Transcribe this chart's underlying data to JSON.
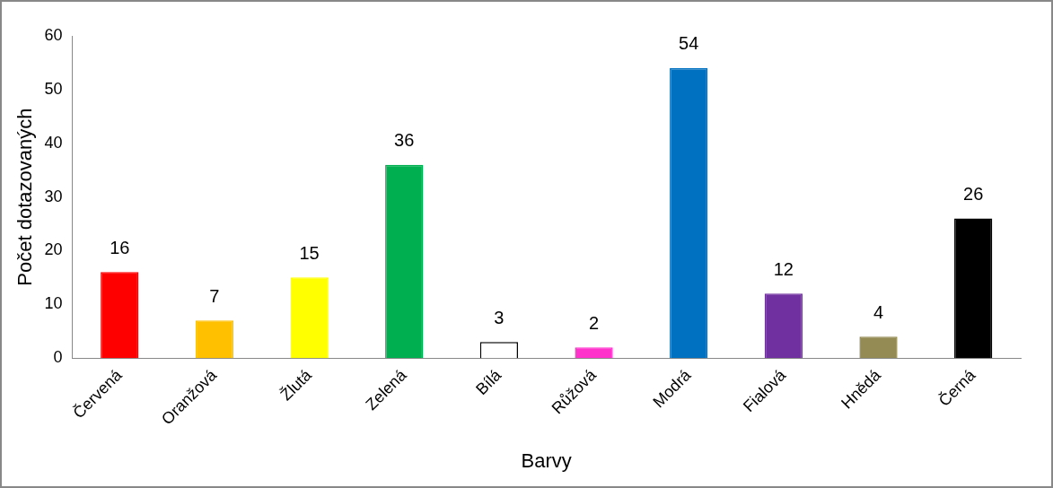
{
  "chart_data": {
    "type": "bar",
    "xlabel": "Barvy",
    "ylabel": "Počet dotazovaných",
    "categories": [
      "Červená",
      "Oranžová",
      "Žlutá",
      "Zelená",
      "Bílá",
      "Růžová",
      "Modrá",
      "Fialová",
      "Hnědá",
      "Černá"
    ],
    "values": [
      16,
      7,
      15,
      36,
      3,
      2,
      54,
      12,
      4,
      26
    ],
    "colors": [
      "#ff0000",
      "#ffc000",
      "#ffff00",
      "#00b050",
      "#ffffff",
      "#ff33cc",
      "#0070c0",
      "#7030a0",
      "#948a54",
      "#000000"
    ],
    "ylim": [
      0,
      60
    ],
    "yticks": [
      0,
      10,
      20,
      30,
      40,
      50,
      60
    ],
    "grid": false,
    "legend": false,
    "data_labels": true
  }
}
